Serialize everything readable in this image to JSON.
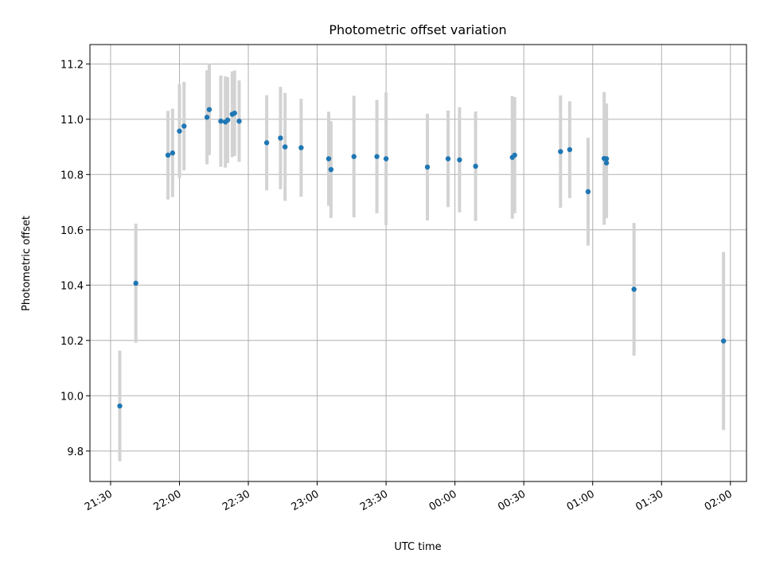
{
  "chart_data": {
    "type": "scatter",
    "title": "Photometric offset variation",
    "xlabel": "UTC time",
    "ylabel": "Photometric offset",
    "grid": true,
    "x_ticks": [
      "21:30",
      "22:00",
      "22:30",
      "23:00",
      "23:30",
      "00:00",
      "00:30",
      "01:00",
      "01:30",
      "02:00"
    ],
    "y_ticks": [
      "9.8",
      "10.0",
      "10.2",
      "10.4",
      "10.6",
      "10.8",
      "11.0",
      "11.2"
    ],
    "xlim": [
      "21:21",
      "02:07"
    ],
    "ylim": [
      9.69,
      11.27
    ],
    "colors": {
      "points": "#1f77b4",
      "errorbars": "#d3d3d3",
      "grid": "#b0b0b0"
    },
    "points": [
      {
        "t": "21:34",
        "y": 9.963,
        "err": 0.2
      },
      {
        "t": "21:41",
        "y": 10.407,
        "err": 0.215
      },
      {
        "t": "21:55",
        "y": 10.87,
        "err": 0.16
      },
      {
        "t": "21:57",
        "y": 10.878,
        "err": 0.16
      },
      {
        "t": "22:00",
        "y": 10.957,
        "err": 0.17
      },
      {
        "t": "22:02",
        "y": 10.975,
        "err": 0.16
      },
      {
        "t": "22:12",
        "y": 11.007,
        "err": 0.17
      },
      {
        "t": "22:13",
        "y": 11.035,
        "err": 0.165
      },
      {
        "t": "22:18",
        "y": 10.993,
        "err": 0.165
      },
      {
        "t": "22:20",
        "y": 10.99,
        "err": 0.165
      },
      {
        "t": "22:21",
        "y": 10.997,
        "err": 0.155
      },
      {
        "t": "22:23",
        "y": 11.018,
        "err": 0.155
      },
      {
        "t": "22:24",
        "y": 11.022,
        "err": 0.155
      },
      {
        "t": "22:26",
        "y": 10.993,
        "err": 0.147
      },
      {
        "t": "22:38",
        "y": 10.915,
        "err": 0.172
      },
      {
        "t": "22:44",
        "y": 10.932,
        "err": 0.185
      },
      {
        "t": "22:46",
        "y": 10.9,
        "err": 0.195
      },
      {
        "t": "22:53",
        "y": 10.897,
        "err": 0.177
      },
      {
        "t": "23:05",
        "y": 10.857,
        "err": 0.17
      },
      {
        "t": "23:06",
        "y": 10.818,
        "err": 0.175
      },
      {
        "t": "23:16",
        "y": 10.865,
        "err": 0.22
      },
      {
        "t": "23:26",
        "y": 10.865,
        "err": 0.205
      },
      {
        "t": "23:30",
        "y": 10.857,
        "err": 0.24
      },
      {
        "t": "23:48",
        "y": 10.827,
        "err": 0.193
      },
      {
        "t": "23:57",
        "y": 10.857,
        "err": 0.175
      },
      {
        "t": "00:02",
        "y": 10.853,
        "err": 0.19
      },
      {
        "t": "00:09",
        "y": 10.83,
        "err": 0.198
      },
      {
        "t": "00:25",
        "y": 10.862,
        "err": 0.222
      },
      {
        "t": "00:26",
        "y": 10.87,
        "err": 0.21
      },
      {
        "t": "00:46",
        "y": 10.883,
        "err": 0.203
      },
      {
        "t": "00:50",
        "y": 10.89,
        "err": 0.175
      },
      {
        "t": "00:58",
        "y": 10.738,
        "err": 0.195
      },
      {
        "t": "01:05",
        "y": 10.858,
        "err": 0.24
      },
      {
        "t": "01:06",
        "y": 10.857,
        "err": 0.2
      },
      {
        "t": "01:06",
        "y": 10.842,
        "err": 0.2
      },
      {
        "t": "01:18",
        "y": 10.385,
        "err": 0.24
      },
      {
        "t": "01:57",
        "y": 10.198,
        "err": 0.322
      }
    ]
  }
}
